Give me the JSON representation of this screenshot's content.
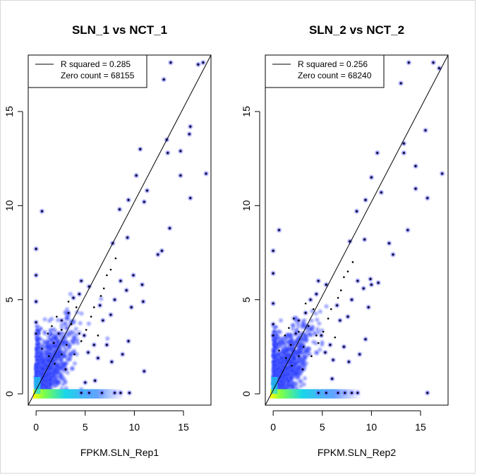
{
  "chart_data": [
    {
      "type": "scatter",
      "title": "SLN_1 vs NCT_1",
      "xlabel": "FPKM.SLN_Rep1",
      "ylabel": "",
      "xlim": [
        -0.8,
        17.8
      ],
      "ylim": [
        -0.6,
        18.0
      ],
      "xticks": [
        0,
        5,
        10,
        15
      ],
      "yticks": [
        0,
        5,
        10,
        15
      ],
      "legend": {
        "position": "top-left",
        "entries": [
          "R squared = 0.285",
          "Zero count = 68155"
        ]
      },
      "fit_line": {
        "slope": 1.0,
        "intercept": 0.2
      },
      "points": [
        [
          0.6,
          9.7
        ],
        [
          0.0,
          7.7
        ],
        [
          0.0,
          6.3
        ],
        [
          0.0,
          4.9
        ],
        [
          0.0,
          3.8
        ],
        [
          0.0,
          3.2
        ],
        [
          7.8,
          8.0
        ],
        [
          8.5,
          9.8
        ],
        [
          9.4,
          10.3
        ],
        [
          10.2,
          11.6
        ],
        [
          10.6,
          13.0
        ],
        [
          11.0,
          10.2
        ],
        [
          11.3,
          10.8
        ],
        [
          12.8,
          7.6
        ],
        [
          12.4,
          7.4
        ],
        [
          13.6,
          8.8
        ],
        [
          13.0,
          16.7
        ],
        [
          13.7,
          17.6
        ],
        [
          14.7,
          12.9
        ],
        [
          14.7,
          11.6
        ],
        [
          15.7,
          14.2
        ],
        [
          15.6,
          13.8
        ],
        [
          15.7,
          10.4
        ],
        [
          16.5,
          17.5
        ],
        [
          17.0,
          17.6
        ],
        [
          17.3,
          11.7
        ],
        [
          13.3,
          13.5
        ],
        [
          13.4,
          12.8
        ],
        [
          11.0,
          1.2
        ],
        [
          9.3,
          8.3
        ],
        [
          9.9,
          6.3
        ],
        [
          10.8,
          5.8
        ],
        [
          10.9,
          4.9
        ],
        [
          8.6,
          6.0
        ],
        [
          9.2,
          5.5
        ],
        [
          9.7,
          4.6
        ],
        [
          8.0,
          5.0
        ],
        [
          7.6,
          4.2
        ],
        [
          6.8,
          3.9
        ],
        [
          6.5,
          4.7
        ],
        [
          7.2,
          2.6
        ],
        [
          7.7,
          1.7
        ],
        [
          8.8,
          2.1
        ],
        [
          9.4,
          2.8
        ],
        [
          6.0,
          0.7
        ],
        [
          5.0,
          0.6
        ],
        [
          5.9,
          2.6
        ],
        [
          6.3,
          1.9
        ],
        [
          8.0,
          0.05
        ],
        [
          8.6,
          0.05
        ],
        [
          9.5,
          0.05
        ],
        [
          4.6,
          0.05
        ],
        [
          5.4,
          0.05
        ],
        [
          6.7,
          0.05
        ],
        [
          4.4,
          5.3
        ],
        [
          3.8,
          5.1
        ],
        [
          4.6,
          6.0
        ],
        [
          5.4,
          5.7
        ],
        [
          3.3,
          4.3
        ],
        [
          2.6,
          3.9
        ],
        [
          2.3,
          3.2
        ],
        [
          1.8,
          2.7
        ],
        [
          4.9,
          3.1
        ],
        [
          5.3,
          2.2
        ],
        [
          3.0,
          1.3
        ]
      ],
      "cloud_dots": [
        [
          1.2,
          3.2
        ],
        [
          1.6,
          3.6
        ],
        [
          2.1,
          4.1
        ],
        [
          2.6,
          3.4
        ],
        [
          3.3,
          4.9
        ],
        [
          3.6,
          3.7
        ],
        [
          4.1,
          4.6
        ],
        [
          4.4,
          3.2
        ],
        [
          3.1,
          2.6
        ],
        [
          2.6,
          2.1
        ],
        [
          1.9,
          1.6
        ],
        [
          1.3,
          2.0
        ],
        [
          0.6,
          2.4
        ],
        [
          3.9,
          2.1
        ],
        [
          4.6,
          2.8
        ],
        [
          5.1,
          3.4
        ],
        [
          5.6,
          4.1
        ],
        [
          5.9,
          4.6
        ],
        [
          6.3,
          3.1
        ],
        [
          6.9,
          5.6
        ],
        [
          7.2,
          6.3
        ],
        [
          7.6,
          6.6
        ],
        [
          8.1,
          7.2
        ],
        [
          6.6,
          5.2
        ]
      ]
    },
    {
      "type": "scatter",
      "title": "SLN_2 vs NCT_2",
      "xlabel": "FPKM.SLN_Rep2",
      "ylabel": "",
      "xlim": [
        -0.8,
        17.8
      ],
      "ylim": [
        -0.6,
        18.0
      ],
      "xticks": [
        0,
        5,
        10,
        15
      ],
      "yticks": [
        0,
        5,
        10,
        15
      ],
      "legend": {
        "position": "top-left",
        "entries": [
          "R squared = 0.256",
          "Zero count = 68240"
        ]
      },
      "fit_line": {
        "slope": 1.0,
        "intercept": 0.2
      },
      "points": [
        [
          0.6,
          8.7
        ],
        [
          0.0,
          7.6
        ],
        [
          0.0,
          6.4
        ],
        [
          0.0,
          4.8
        ],
        [
          0.0,
          3.7
        ],
        [
          0.0,
          3.1
        ],
        [
          7.8,
          8.1
        ],
        [
          8.5,
          9.7
        ],
        [
          9.4,
          10.3
        ],
        [
          10.0,
          11.5
        ],
        [
          10.6,
          12.8
        ],
        [
          11.0,
          10.7
        ],
        [
          11.8,
          8.0
        ],
        [
          12.2,
          7.4
        ],
        [
          13.7,
          8.7
        ],
        [
          13.0,
          16.5
        ],
        [
          13.8,
          17.6
        ],
        [
          14.5,
          12.1
        ],
        [
          14.5,
          10.9
        ],
        [
          15.5,
          14.0
        ],
        [
          15.7,
          10.4
        ],
        [
          16.3,
          17.6
        ],
        [
          16.9,
          17.3
        ],
        [
          17.2,
          11.7
        ],
        [
          13.3,
          13.3
        ],
        [
          13.3,
          12.8
        ],
        [
          15.7,
          0.05
        ],
        [
          10.0,
          5.8
        ],
        [
          10.7,
          5.9
        ],
        [
          9.3,
          8.2
        ],
        [
          9.9,
          6.1
        ],
        [
          8.6,
          6.0
        ],
        [
          9.2,
          5.6
        ],
        [
          9.7,
          4.6
        ],
        [
          8.0,
          5.0
        ],
        [
          7.6,
          4.1
        ],
        [
          6.8,
          3.9
        ],
        [
          6.5,
          4.7
        ],
        [
          7.2,
          2.5
        ],
        [
          7.7,
          1.7
        ],
        [
          8.8,
          2.1
        ],
        [
          9.4,
          2.9
        ],
        [
          6.0,
          0.8
        ],
        [
          6.1,
          1.8
        ],
        [
          5.8,
          2.6
        ],
        [
          8.0,
          0.05
        ],
        [
          8.6,
          0.05
        ],
        [
          7.3,
          0.05
        ],
        [
          4.6,
          0.05
        ],
        [
          5.4,
          0.05
        ],
        [
          6.6,
          0.05
        ],
        [
          4.4,
          5.3
        ],
        [
          3.8,
          5.0
        ],
        [
          4.6,
          6.0
        ],
        [
          5.4,
          5.8
        ],
        [
          3.3,
          4.3
        ],
        [
          2.6,
          3.9
        ],
        [
          2.3,
          3.2
        ],
        [
          1.8,
          2.6
        ],
        [
          4.9,
          3.1
        ],
        [
          5.3,
          2.2
        ],
        [
          3.0,
          1.3
        ]
      ],
      "cloud_dots": [
        [
          1.2,
          3.1
        ],
        [
          1.6,
          3.5
        ],
        [
          2.1,
          4.0
        ],
        [
          2.6,
          3.3
        ],
        [
          3.3,
          4.8
        ],
        [
          3.6,
          3.6
        ],
        [
          4.1,
          4.5
        ],
        [
          4.4,
          3.1
        ],
        [
          3.1,
          2.5
        ],
        [
          2.6,
          2.0
        ],
        [
          1.9,
          1.5
        ],
        [
          1.3,
          1.9
        ],
        [
          0.6,
          2.3
        ],
        [
          3.9,
          2.0
        ],
        [
          4.6,
          2.7
        ],
        [
          5.1,
          3.3
        ],
        [
          5.6,
          4.0
        ],
        [
          5.9,
          4.5
        ],
        [
          6.3,
          3.0
        ],
        [
          6.9,
          5.5
        ],
        [
          7.2,
          6.2
        ],
        [
          7.6,
          6.5
        ],
        [
          8.1,
          7.0
        ],
        [
          6.6,
          5.1
        ]
      ]
    }
  ]
}
